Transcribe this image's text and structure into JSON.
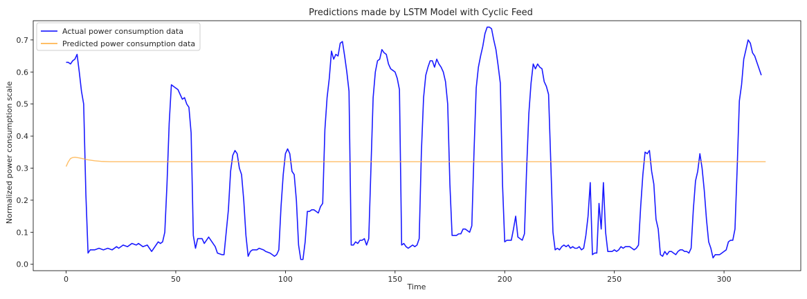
{
  "chart_data": {
    "type": "line",
    "title": "Predictions made by LSTM Model with Cyclic Feed",
    "xlabel": "Time",
    "ylabel": "Normalized power consumption scale",
    "xlim": [
      -15,
      335
    ],
    "ylim": [
      -0.02,
      0.76
    ],
    "xticks": [
      0,
      50,
      100,
      150,
      200,
      250,
      300
    ],
    "yticks": [
      0.0,
      0.1,
      0.2,
      0.3,
      0.4,
      0.5,
      0.6,
      0.7
    ],
    "grid": false,
    "legend": "top-left",
    "series": [
      {
        "name": "Actual power consumption data",
        "color": "#0000ff",
        "points": [
          [
            0,
            0.63
          ],
          [
            1,
            0.63
          ],
          [
            2,
            0.625
          ],
          [
            3,
            0.635
          ],
          [
            4,
            0.64
          ],
          [
            5,
            0.655
          ],
          [
            6,
            0.6
          ],
          [
            7,
            0.54
          ],
          [
            8,
            0.5
          ],
          [
            9,
            0.22
          ],
          [
            10,
            0.035
          ],
          [
            11,
            0.045
          ],
          [
            13,
            0.045
          ],
          [
            15,
            0.05
          ],
          [
            17,
            0.045
          ],
          [
            19,
            0.05
          ],
          [
            21,
            0.045
          ],
          [
            23,
            0.055
          ],
          [
            24,
            0.05
          ],
          [
            26,
            0.06
          ],
          [
            28,
            0.055
          ],
          [
            30,
            0.065
          ],
          [
            32,
            0.06
          ],
          [
            33,
            0.065
          ],
          [
            35,
            0.055
          ],
          [
            37,
            0.06
          ],
          [
            38,
            0.05
          ],
          [
            39,
            0.04
          ],
          [
            41,
            0.06
          ],
          [
            42,
            0.07
          ],
          [
            43,
            0.065
          ],
          [
            44,
            0.07
          ],
          [
            45,
            0.1
          ],
          [
            46,
            0.25
          ],
          [
            47,
            0.44
          ],
          [
            48,
            0.56
          ],
          [
            49,
            0.555
          ],
          [
            50,
            0.55
          ],
          [
            51,
            0.545
          ],
          [
            52,
            0.53
          ],
          [
            53,
            0.515
          ],
          [
            54,
            0.52
          ],
          [
            55,
            0.5
          ],
          [
            56,
            0.49
          ],
          [
            57,
            0.41
          ],
          [
            58,
            0.09
          ],
          [
            59,
            0.05
          ],
          [
            60,
            0.08
          ],
          [
            62,
            0.08
          ],
          [
            63,
            0.065
          ],
          [
            65,
            0.085
          ],
          [
            66,
            0.075
          ],
          [
            68,
            0.055
          ],
          [
            69,
            0.035
          ],
          [
            71,
            0.03
          ],
          [
            72,
            0.03
          ],
          [
            74,
            0.17
          ],
          [
            75,
            0.29
          ],
          [
            76,
            0.34
          ],
          [
            77,
            0.355
          ],
          [
            78,
            0.345
          ],
          [
            79,
            0.3
          ],
          [
            80,
            0.28
          ],
          [
            81,
            0.2
          ],
          [
            82,
            0.09
          ],
          [
            83,
            0.025
          ],
          [
            84,
            0.04
          ],
          [
            85,
            0.045
          ],
          [
            87,
            0.045
          ],
          [
            88,
            0.05
          ],
          [
            90,
            0.045
          ],
          [
            91,
            0.04
          ],
          [
            93,
            0.035
          ],
          [
            94,
            0.03
          ],
          [
            95,
            0.025
          ],
          [
            96,
            0.03
          ],
          [
            97,
            0.045
          ],
          [
            98,
            0.18
          ],
          [
            99,
            0.28
          ],
          [
            100,
            0.345
          ],
          [
            101,
            0.36
          ],
          [
            102,
            0.345
          ],
          [
            103,
            0.29
          ],
          [
            104,
            0.28
          ],
          [
            105,
            0.2
          ],
          [
            106,
            0.06
          ],
          [
            107,
            0.015
          ],
          [
            108,
            0.015
          ],
          [
            109,
            0.07
          ],
          [
            110,
            0.165
          ],
          [
            111,
            0.165
          ],
          [
            112,
            0.17
          ],
          [
            113,
            0.17
          ],
          [
            114,
            0.165
          ],
          [
            115,
            0.16
          ],
          [
            116,
            0.18
          ],
          [
            117,
            0.19
          ],
          [
            118,
            0.42
          ],
          [
            119,
            0.52
          ],
          [
            120,
            0.58
          ],
          [
            121,
            0.665
          ],
          [
            122,
            0.64
          ],
          [
            123,
            0.655
          ],
          [
            124,
            0.65
          ],
          [
            125,
            0.69
          ],
          [
            126,
            0.695
          ],
          [
            127,
            0.65
          ],
          [
            128,
            0.6
          ],
          [
            129,
            0.54
          ],
          [
            130,
            0.06
          ],
          [
            131,
            0.06
          ],
          [
            132,
            0.07
          ],
          [
            133,
            0.065
          ],
          [
            134,
            0.075
          ],
          [
            135,
            0.075
          ],
          [
            136,
            0.08
          ],
          [
            137,
            0.06
          ],
          [
            138,
            0.08
          ],
          [
            139,
            0.3
          ],
          [
            140,
            0.52
          ],
          [
            141,
            0.6
          ],
          [
            142,
            0.635
          ],
          [
            143,
            0.64
          ],
          [
            144,
            0.67
          ],
          [
            145,
            0.66
          ],
          [
            146,
            0.655
          ],
          [
            147,
            0.625
          ],
          [
            148,
            0.61
          ],
          [
            149,
            0.605
          ],
          [
            150,
            0.6
          ],
          [
            151,
            0.58
          ],
          [
            152,
            0.545
          ],
          [
            153,
            0.06
          ],
          [
            154,
            0.065
          ],
          [
            155,
            0.055
          ],
          [
            156,
            0.05
          ],
          [
            157,
            0.055
          ],
          [
            158,
            0.06
          ],
          [
            159,
            0.055
          ],
          [
            160,
            0.06
          ],
          [
            161,
            0.08
          ],
          [
            162,
            0.35
          ],
          [
            163,
            0.52
          ],
          [
            164,
            0.59
          ],
          [
            165,
            0.615
          ],
          [
            166,
            0.635
          ],
          [
            167,
            0.635
          ],
          [
            168,
            0.615
          ],
          [
            169,
            0.64
          ],
          [
            170,
            0.625
          ],
          [
            171,
            0.615
          ],
          [
            172,
            0.6
          ],
          [
            173,
            0.57
          ],
          [
            174,
            0.5
          ],
          [
            175,
            0.25
          ],
          [
            176,
            0.09
          ],
          [
            177,
            0.09
          ],
          [
            178,
            0.09
          ],
          [
            179,
            0.095
          ],
          [
            180,
            0.095
          ],
          [
            181,
            0.11
          ],
          [
            182,
            0.11
          ],
          [
            183,
            0.105
          ],
          [
            184,
            0.1
          ],
          [
            185,
            0.12
          ],
          [
            186,
            0.35
          ],
          [
            187,
            0.55
          ],
          [
            188,
            0.615
          ],
          [
            189,
            0.65
          ],
          [
            190,
            0.68
          ],
          [
            191,
            0.72
          ],
          [
            192,
            0.74
          ],
          [
            193,
            0.74
          ],
          [
            194,
            0.735
          ],
          [
            195,
            0.7
          ],
          [
            196,
            0.67
          ],
          [
            197,
            0.62
          ],
          [
            198,
            0.565
          ],
          [
            199,
            0.25
          ],
          [
            200,
            0.07
          ],
          [
            201,
            0.075
          ],
          [
            202,
            0.075
          ],
          [
            203,
            0.075
          ],
          [
            204,
            0.11
          ],
          [
            205,
            0.15
          ],
          [
            206,
            0.085
          ],
          [
            207,
            0.08
          ],
          [
            208,
            0.075
          ],
          [
            209,
            0.095
          ],
          [
            210,
            0.3
          ],
          [
            211,
            0.47
          ],
          [
            212,
            0.565
          ],
          [
            213,
            0.625
          ],
          [
            214,
            0.61
          ],
          [
            215,
            0.625
          ],
          [
            216,
            0.615
          ],
          [
            217,
            0.61
          ],
          [
            218,
            0.57
          ],
          [
            219,
            0.555
          ],
          [
            220,
            0.53
          ],
          [
            221,
            0.32
          ],
          [
            222,
            0.1
          ],
          [
            223,
            0.045
          ],
          [
            224,
            0.05
          ],
          [
            225,
            0.045
          ],
          [
            226,
            0.055
          ],
          [
            227,
            0.06
          ],
          [
            228,
            0.055
          ],
          [
            229,
            0.06
          ],
          [
            230,
            0.05
          ],
          [
            231,
            0.055
          ],
          [
            232,
            0.05
          ],
          [
            233,
            0.05
          ],
          [
            234,
            0.055
          ],
          [
            235,
            0.045
          ],
          [
            236,
            0.05
          ],
          [
            237,
            0.09
          ],
          [
            238,
            0.15
          ],
          [
            239,
            0.255
          ],
          [
            240,
            0.03
          ],
          [
            241,
            0.035
          ],
          [
            242,
            0.035
          ],
          [
            243,
            0.19
          ],
          [
            244,
            0.11
          ],
          [
            245,
            0.255
          ],
          [
            246,
            0.1
          ],
          [
            247,
            0.04
          ],
          [
            248,
            0.04
          ],
          [
            249,
            0.04
          ],
          [
            250,
            0.045
          ],
          [
            251,
            0.04
          ],
          [
            252,
            0.045
          ],
          [
            253,
            0.055
          ],
          [
            254,
            0.05
          ],
          [
            255,
            0.055
          ],
          [
            256,
            0.055
          ],
          [
            257,
            0.055
          ],
          [
            258,
            0.05
          ],
          [
            259,
            0.045
          ],
          [
            260,
            0.05
          ],
          [
            261,
            0.06
          ],
          [
            262,
            0.18
          ],
          [
            263,
            0.28
          ],
          [
            264,
            0.35
          ],
          [
            265,
            0.345
          ],
          [
            266,
            0.355
          ],
          [
            267,
            0.29
          ],
          [
            268,
            0.25
          ],
          [
            269,
            0.14
          ],
          [
            270,
            0.11
          ],
          [
            271,
            0.03
          ],
          [
            272,
            0.025
          ],
          [
            273,
            0.04
          ],
          [
            274,
            0.03
          ],
          [
            275,
            0.04
          ],
          [
            276,
            0.04
          ],
          [
            277,
            0.035
          ],
          [
            278,
            0.03
          ],
          [
            279,
            0.04
          ],
          [
            280,
            0.045
          ],
          [
            281,
            0.045
          ],
          [
            282,
            0.04
          ],
          [
            283,
            0.04
          ],
          [
            284,
            0.035
          ],
          [
            285,
            0.05
          ],
          [
            286,
            0.17
          ],
          [
            287,
            0.26
          ],
          [
            288,
            0.29
          ],
          [
            289,
            0.345
          ],
          [
            290,
            0.3
          ],
          [
            291,
            0.23
          ],
          [
            292,
            0.14
          ],
          [
            293,
            0.07
          ],
          [
            294,
            0.05
          ],
          [
            295,
            0.02
          ],
          [
            296,
            0.03
          ],
          [
            297,
            0.03
          ],
          [
            298,
            0.03
          ],
          [
            299,
            0.035
          ],
          [
            300,
            0.04
          ],
          [
            301,
            0.045
          ],
          [
            302,
            0.07
          ],
          [
            303,
            0.075
          ],
          [
            304,
            0.075
          ],
          [
            305,
            0.11
          ],
          [
            306,
            0.3
          ],
          [
            307,
            0.51
          ],
          [
            308,
            0.56
          ],
          [
            309,
            0.64
          ],
          [
            310,
            0.67
          ],
          [
            311,
            0.7
          ],
          [
            312,
            0.69
          ],
          [
            313,
            0.66
          ],
          [
            314,
            0.65
          ],
          [
            315,
            0.63
          ],
          [
            316,
            0.61
          ],
          [
            317,
            0.59
          ]
        ]
      },
      {
        "name": "Predicted power consumption data",
        "color": "#ffa832",
        "points": [
          [
            0,
            0.305
          ],
          [
            1,
            0.32
          ],
          [
            2,
            0.33
          ],
          [
            3,
            0.333
          ],
          [
            4,
            0.334
          ],
          [
            5,
            0.333
          ],
          [
            6,
            0.332
          ],
          [
            8,
            0.329
          ],
          [
            10,
            0.326
          ],
          [
            13,
            0.323
          ],
          [
            16,
            0.321
          ],
          [
            20,
            0.32
          ],
          [
            30,
            0.32
          ],
          [
            60,
            0.32
          ],
          [
            100,
            0.32
          ],
          [
            150,
            0.32
          ],
          [
            200,
            0.32
          ],
          [
            250,
            0.32
          ],
          [
            300,
            0.32
          ],
          [
            319,
            0.32
          ]
        ]
      }
    ]
  }
}
